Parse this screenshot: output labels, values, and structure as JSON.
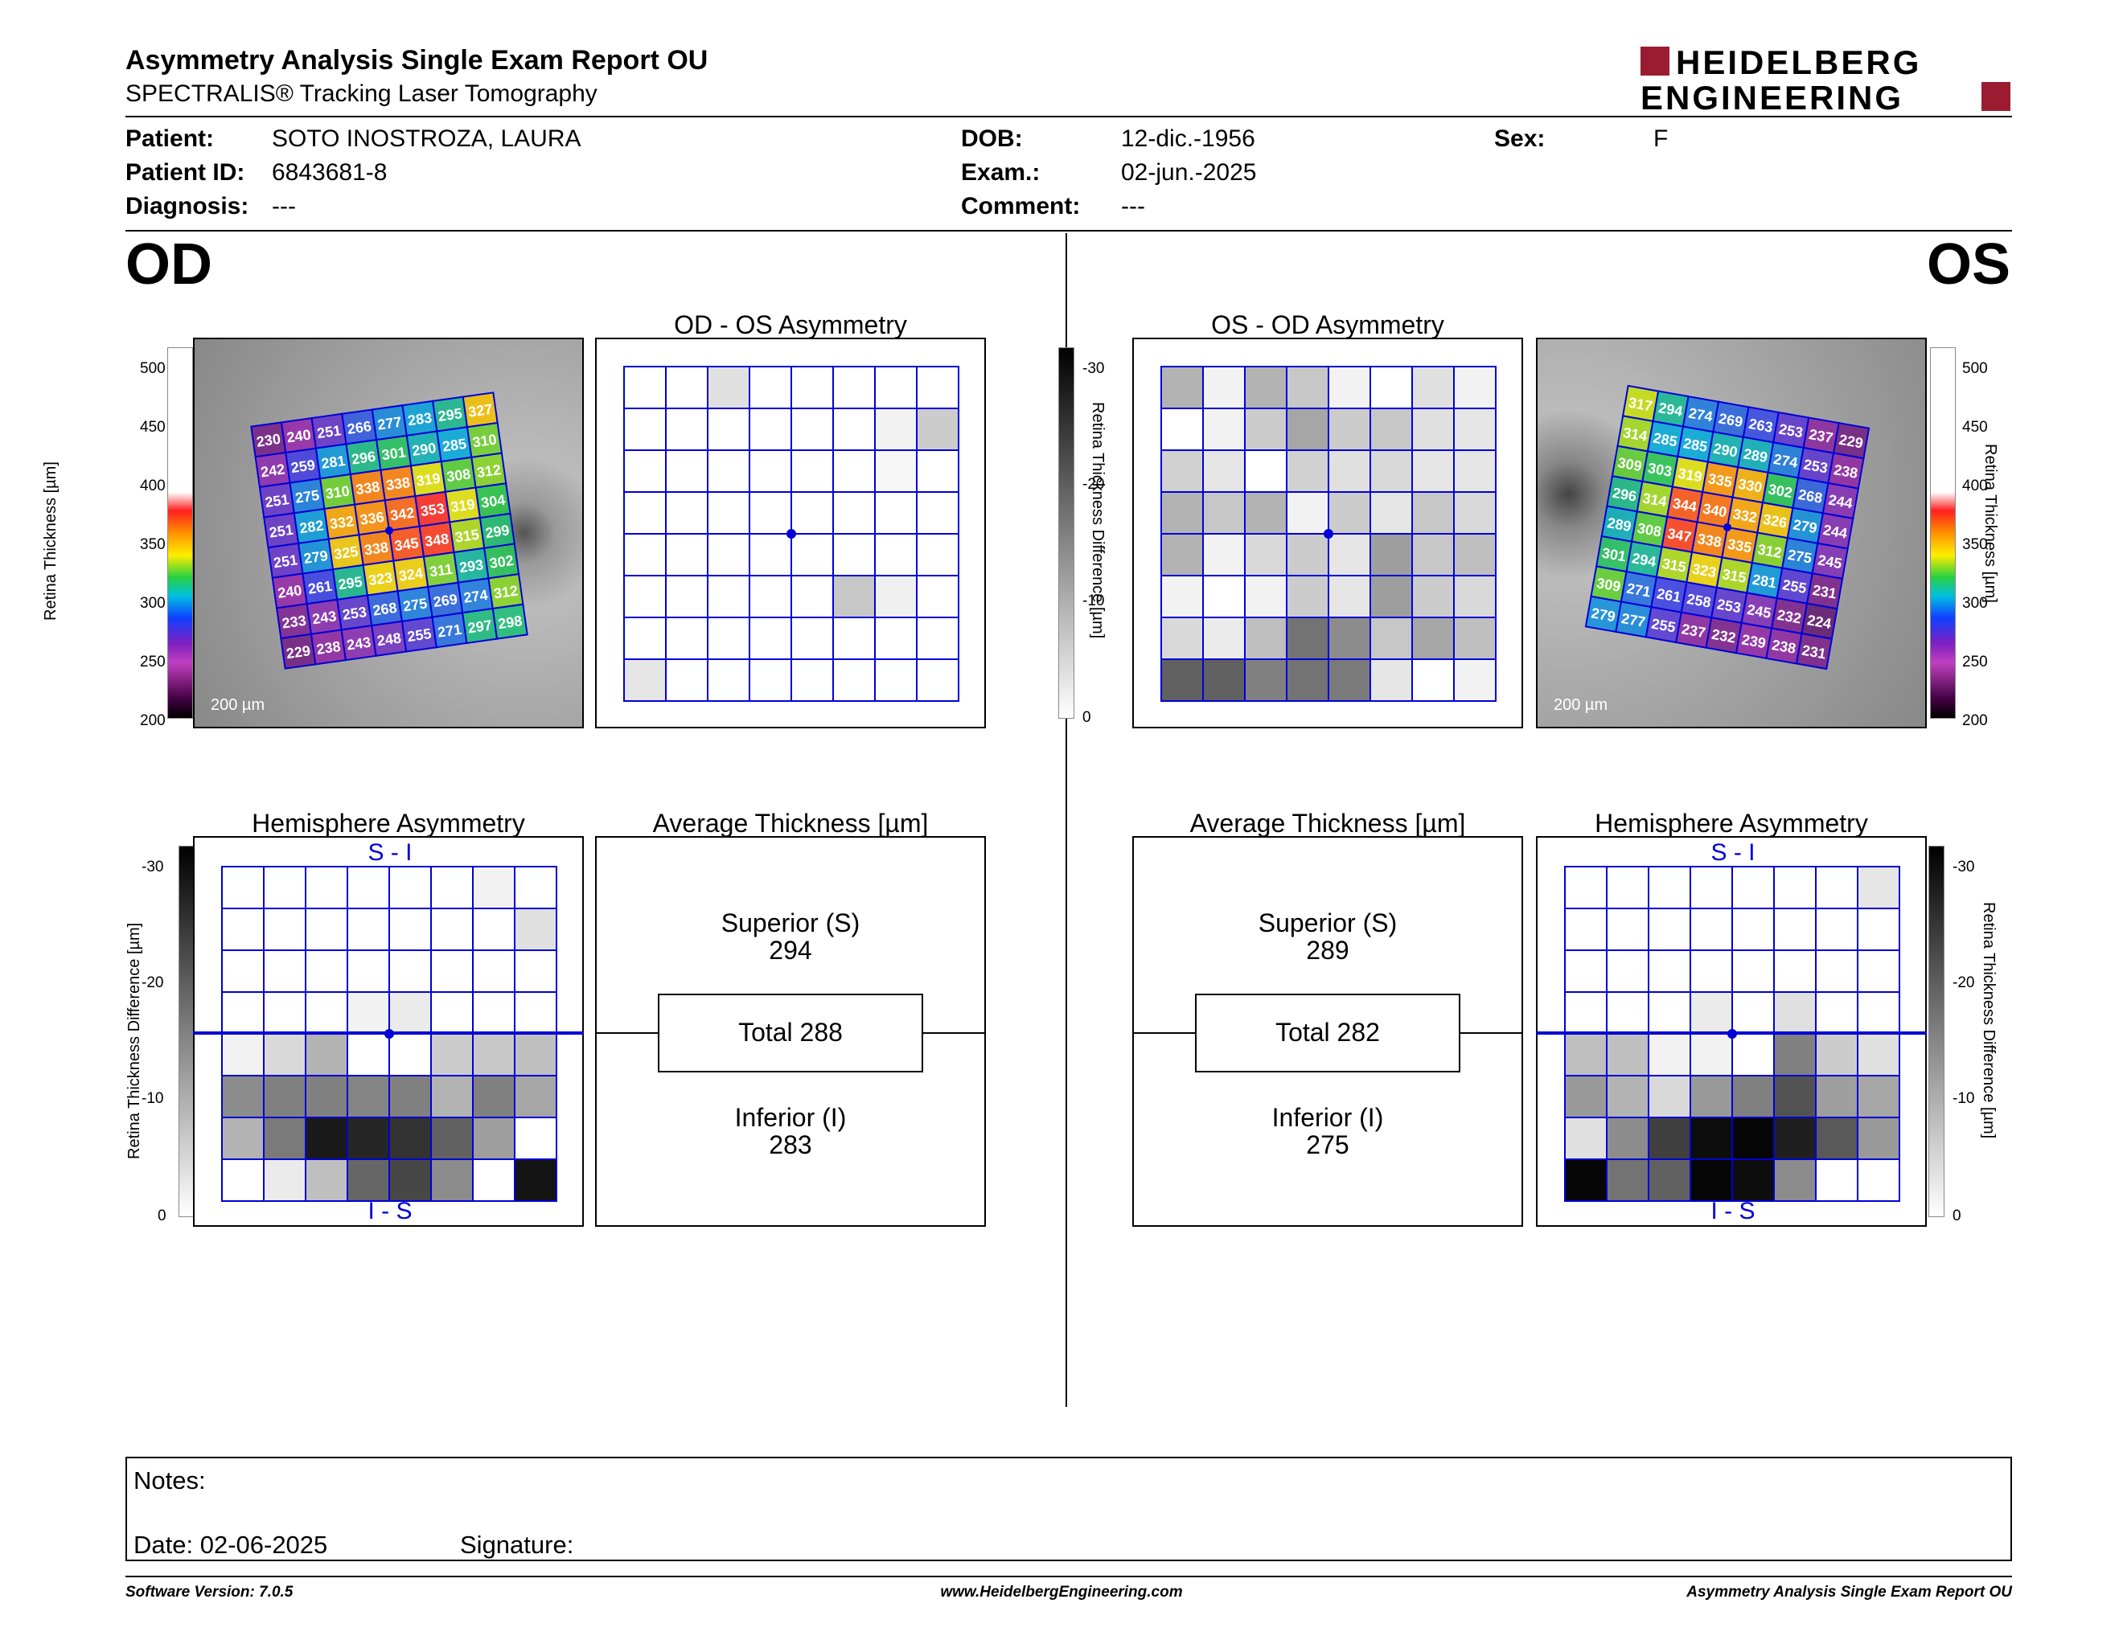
{
  "header": {
    "title": "Asymmetry Analysis Single Exam Report OU",
    "subtitle": "SPECTRALIS® Tracking Laser Tomography",
    "logo_line1": "HEIDELBERG",
    "logo_line2": "ENGINEERING"
  },
  "patient": {
    "name_label": "Patient:",
    "name": "SOTO INOSTROZA, LAURA",
    "id_label": "Patient ID:",
    "id": "6843681-8",
    "diagnosis_label": "Diagnosis:",
    "diagnosis": "---",
    "dob_label": "DOB:",
    "dob": "12-dic.-1956",
    "exam_label": "Exam.:",
    "exam": "02-jun.-2025",
    "comment_label": "Comment:",
    "comment": "---",
    "sex_label": "Sex:",
    "sex": "F"
  },
  "od": {
    "eye_label": "OD",
    "asym_title": "OD - OS Asymmetry",
    "hemi_title": "Hemisphere Asymmetry",
    "avg_title": "Average Thickness [µm]",
    "scale_bar": "200 µm",
    "hemi_top": "S - I",
    "hemi_bottom": "I - S",
    "superior_label": "Superior (S)",
    "superior_value": "294",
    "total_label": "Total 288",
    "inferior_label": "Inferior (I)",
    "inferior_value": "283",
    "thickness": [
      [
        230,
        240,
        251,
        266,
        277,
        283,
        295,
        327
      ],
      [
        242,
        259,
        281,
        296,
        301,
        290,
        285,
        310
      ],
      [
        251,
        275,
        310,
        338,
        338,
        319,
        308,
        312
      ],
      [
        251,
        282,
        332,
        336,
        342,
        353,
        319,
        304
      ],
      [
        251,
        279,
        325,
        338,
        345,
        348,
        315,
        299
      ],
      [
        240,
        261,
        295,
        323,
        324,
        311,
        293,
        302
      ],
      [
        233,
        243,
        253,
        268,
        275,
        269,
        274,
        312
      ],
      [
        229,
        238,
        243,
        248,
        255,
        271,
        297,
        298
      ]
    ],
    "asym_gray": [
      [
        0,
        0,
        0.12,
        0,
        0,
        0,
        0,
        0
      ],
      [
        0,
        0,
        0,
        0,
        0,
        0,
        0.05,
        0.2
      ],
      [
        0,
        0,
        0,
        0,
        0,
        0,
        0.03,
        0
      ],
      [
        0,
        0,
        0,
        0,
        0,
        0,
        0,
        0
      ],
      [
        0,
        0,
        0,
        0,
        0,
        0,
        0,
        0
      ],
      [
        0,
        0,
        0,
        0,
        0,
        0.22,
        0.06,
        0
      ],
      [
        0,
        0,
        0,
        0,
        0,
        0,
        0,
        0
      ],
      [
        0.1,
        0,
        0,
        0,
        0,
        0,
        0,
        0
      ]
    ],
    "hemi_gray": [
      [
        0,
        0,
        0,
        0,
        0,
        0,
        0.05,
        0
      ],
      [
        0,
        0,
        0,
        0,
        0,
        0,
        0,
        0.12
      ],
      [
        0,
        0,
        0,
        0,
        0,
        0,
        0,
        0
      ],
      [
        0,
        0,
        0,
        0.05,
        0.08,
        0,
        0,
        0
      ],
      [
        0.05,
        0.15,
        0.3,
        0,
        0,
        0.2,
        0.22,
        0.25
      ],
      [
        0.45,
        0.5,
        0.5,
        0.48,
        0.5,
        0.3,
        0.5,
        0.35
      ],
      [
        0.3,
        0.52,
        0.9,
        0.85,
        0.8,
        0.62,
        0.38,
        0
      ],
      [
        0,
        0.08,
        0.25,
        0.6,
        0.72,
        0.45,
        0,
        0.92
      ]
    ]
  },
  "os": {
    "eye_label": "OS",
    "asym_title": "OS - OD Asymmetry",
    "hemi_title": "Hemisphere Asymmetry",
    "avg_title": "Average Thickness [µm]",
    "scale_bar": "200 µm",
    "hemi_top": "S - I",
    "hemi_bottom": "I - S",
    "superior_label": "Superior (S)",
    "superior_value": "289",
    "total_label": "Total 282",
    "inferior_label": "Inferior (I)",
    "inferior_value": "275",
    "thickness": [
      [
        317,
        294,
        274,
        269,
        263,
        253,
        237,
        229
      ],
      [
        314,
        285,
        285,
        290,
        289,
        274,
        253,
        238
      ],
      [
        309,
        303,
        319,
        335,
        330,
        302,
        268,
        244
      ],
      [
        296,
        314,
        344,
        340,
        332,
        326,
        279,
        244
      ],
      [
        289,
        308,
        347,
        338,
        335,
        312,
        275,
        245
      ],
      [
        301,
        294,
        315,
        323,
        315,
        281,
        255,
        231
      ],
      [
        309,
        271,
        261,
        258,
        253,
        245,
        232,
        224
      ],
      [
        279,
        277,
        255,
        237,
        232,
        239,
        238,
        231
      ]
    ],
    "asym_gray": [
      [
        0.3,
        0.05,
        0.3,
        0.22,
        0.05,
        0,
        0.12,
        0.05
      ],
      [
        0,
        0.05,
        0.2,
        0.35,
        0.2,
        0.22,
        0.12,
        0.1
      ],
      [
        0.18,
        0.1,
        0,
        0.18,
        0.12,
        0.15,
        0.1,
        0.1
      ],
      [
        0.3,
        0.22,
        0.3,
        0.05,
        0.2,
        0.1,
        0.22,
        0.15
      ],
      [
        0.3,
        0.05,
        0.15,
        0.2,
        0.1,
        0.38,
        0.22,
        0.25
      ],
      [
        0.05,
        0,
        0.05,
        0.2,
        0.1,
        0.38,
        0.2,
        0.15
      ],
      [
        0.15,
        0.08,
        0.25,
        0.55,
        0.45,
        0.22,
        0.35,
        0.25
      ],
      [
        0.62,
        0.62,
        0.5,
        0.55,
        0.52,
        0.1,
        0,
        0.05
      ]
    ],
    "hemi_gray": [
      [
        0,
        0,
        0,
        0,
        0,
        0,
        0,
        0.1
      ],
      [
        0,
        0,
        0,
        0,
        0,
        0,
        0,
        0
      ],
      [
        0,
        0,
        0,
        0,
        0,
        0,
        0,
        0
      ],
      [
        0,
        0,
        0,
        0.08,
        0,
        0.12,
        0,
        0
      ],
      [
        0.25,
        0.25,
        0.05,
        0.05,
        0,
        0.5,
        0.2,
        0.12
      ],
      [
        0.4,
        0.3,
        0.15,
        0.4,
        0.5,
        0.68,
        0.38,
        0.35
      ],
      [
        0.12,
        0.45,
        0.75,
        0.95,
        0.98,
        0.88,
        0.65,
        0.4
      ],
      [
        0.98,
        0.55,
        0.62,
        0.98,
        0.95,
        0.45,
        0,
        0
      ]
    ]
  },
  "scales": {
    "thickness_label": "Retina Thickness [µm]",
    "thickness_ticks": [
      "500",
      "450",
      "400",
      "350",
      "300",
      "250",
      "200"
    ],
    "diff_label": "Retina Thickness Difference [µm]",
    "diff_ticks": [
      "-30",
      "-20",
      "-10",
      "0"
    ]
  },
  "notes": {
    "notes_label": "Notes:",
    "date_label": "Date: 02-06-2025",
    "signature_label": "Signature:"
  },
  "footer": {
    "software": "Software Version: 7.0.5",
    "website": "www.HeidelbergEngineering.com",
    "report": "Asymmetry Analysis Single Exam Report OU"
  },
  "colors": {
    "grid_blue": "#0000d8",
    "logo_red": "#9b1b30"
  }
}
